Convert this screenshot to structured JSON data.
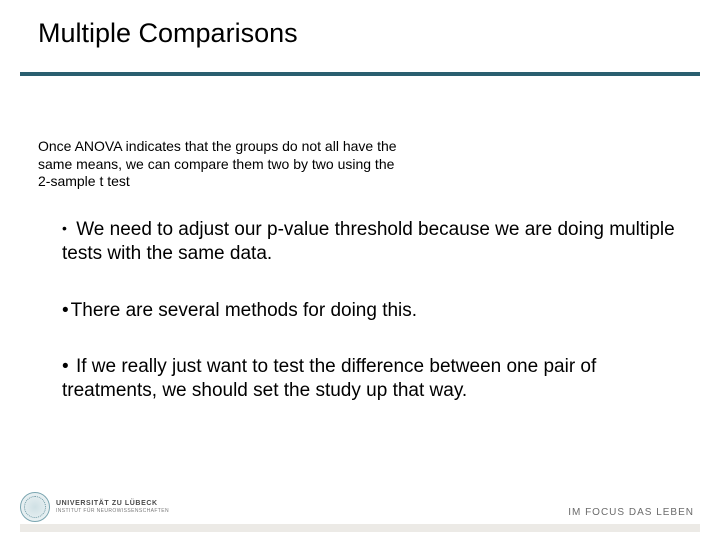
{
  "slide": {
    "title": "Multiple Comparisons",
    "intro": "Once ANOVA indicates that the groups do not all have the same means, we can compare them two by two using the 2-sample t test",
    "bullets": [
      "We need to adjust our p-value threshold because we are doing multiple tests with the same data.",
      "There are several methods for doing this.",
      "If we really just want to test the difference between one pair of treatments, we should set the study up that way."
    ]
  },
  "footer": {
    "university_line1": "UNIVERSITÄT ZU LÜBECK",
    "university_line2": "INSTITUT FÜR NEUROWISSENSCHAFTEN",
    "tagline": "IM FOCUS DAS LEBEN"
  },
  "colors": {
    "divider": "#2a5f6f",
    "footer_bar": "#eceae6",
    "text": "#000000",
    "tagline": "#6b6b6b"
  }
}
